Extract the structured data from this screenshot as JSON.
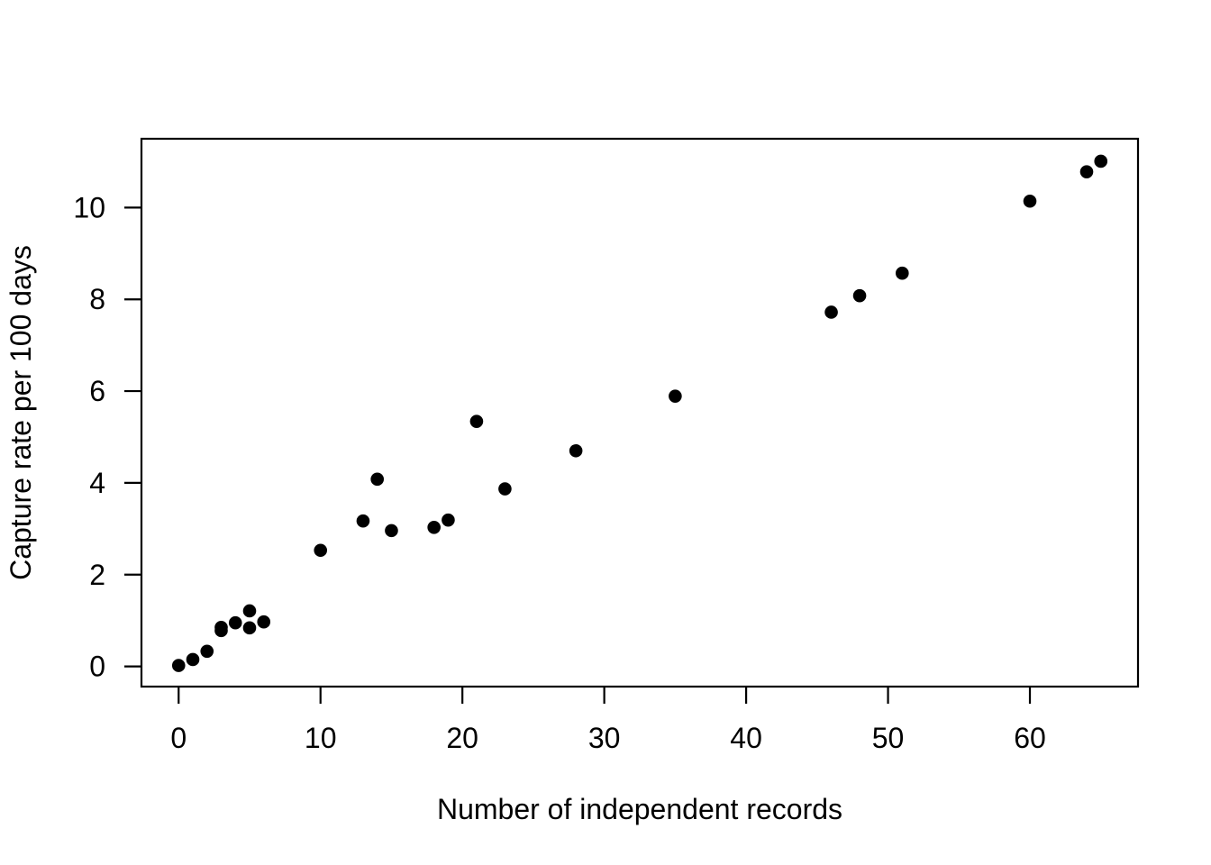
{
  "figure": {
    "background": "#ffffff",
    "foreground": "#000000"
  },
  "chart_data": {
    "type": "scatter",
    "title": "",
    "xlabel": "Number of independent records",
    "ylabel": "Capture rate per 100 days",
    "x_ticks": [
      0,
      10,
      20,
      30,
      40,
      50,
      60
    ],
    "y_ticks": [
      0,
      2,
      4,
      6,
      8,
      10
    ],
    "xlim": [
      -2.62,
      67.62
    ],
    "ylim": [
      -0.44,
      11.5
    ],
    "grid": false,
    "legend": "none",
    "marker": {
      "shape": "filled-circle",
      "radius_px": 7.3,
      "color": "#000000"
    },
    "series": [
      {
        "name": "capture-rate",
        "points": [
          [
            0,
            0.02
          ],
          [
            1,
            0.15
          ],
          [
            2,
            0.33
          ],
          [
            3,
            0.78
          ],
          [
            3,
            0.85
          ],
          [
            4,
            0.95
          ],
          [
            5,
            0.84
          ],
          [
            5,
            1.21
          ],
          [
            6,
            0.97
          ],
          [
            10,
            2.53
          ],
          [
            13,
            3.17
          ],
          [
            14,
            4.08
          ],
          [
            15,
            2.96
          ],
          [
            18,
            3.03
          ],
          [
            19,
            3.19
          ],
          [
            21,
            5.34
          ],
          [
            23,
            3.87
          ],
          [
            28,
            4.7
          ],
          [
            35,
            5.89
          ],
          [
            46,
            7.72
          ],
          [
            48,
            8.08
          ],
          [
            51,
            8.57
          ],
          [
            60,
            10.14
          ],
          [
            64,
            10.78
          ],
          [
            65,
            11.01
          ]
        ]
      }
    ]
  }
}
